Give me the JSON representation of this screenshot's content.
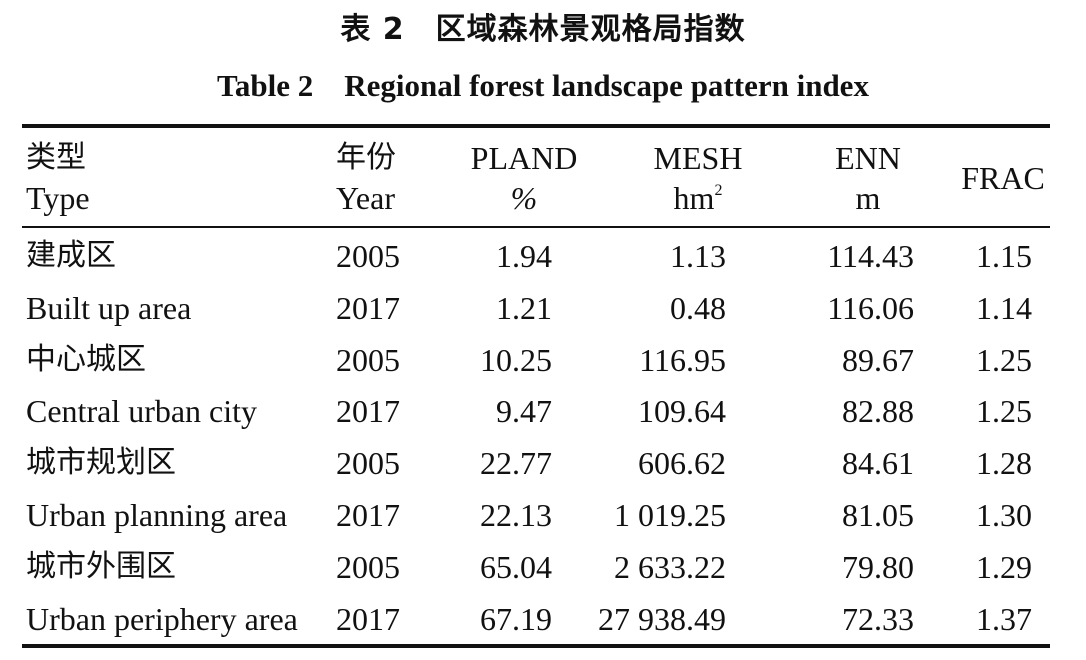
{
  "title_cn": "表 2　区域森林景观格局指数",
  "title_en": "Table 2　Regional forest landscape pattern index",
  "headers": {
    "type_cn": "类型",
    "type_en": "Type",
    "year_cn": "年份",
    "year_en": "Year",
    "pland": "PLAND",
    "pland_unit": "%",
    "mesh": "MESH",
    "mesh_unit": "hm",
    "mesh_unit_sup": "2",
    "enn": "ENN",
    "enn_unit": "m",
    "frac": "FRAC"
  },
  "rows": [
    {
      "type": "建成区",
      "year": "2005",
      "pland": "1.94",
      "mesh": "1.13",
      "enn": "114.43",
      "frac": "1.15"
    },
    {
      "type": "Built up area",
      "year": "2017",
      "pland": "1.21",
      "mesh": "0.48",
      "enn": "116.06",
      "frac": "1.14"
    },
    {
      "type": "中心城区",
      "year": "2005",
      "pland": "10.25",
      "mesh": "116.95",
      "enn": "89.67",
      "frac": "1.25"
    },
    {
      "type": "Central urban city",
      "year": "2017",
      "pland": "9.47",
      "mesh": "109.64",
      "enn": "82.88",
      "frac": "1.25"
    },
    {
      "type": "城市规划区",
      "year": "2005",
      "pland": "22.77",
      "mesh": "606.62",
      "enn": "84.61",
      "frac": "1.28"
    },
    {
      "type": "Urban planning area",
      "year": "2017",
      "pland": "22.13",
      "mesh": "1 019.25",
      "enn": "81.05",
      "frac": "1.30"
    },
    {
      "type": "城市外围区",
      "year": "2005",
      "pland": "65.04",
      "mesh": "2 633.22",
      "enn": "79.80",
      "frac": "1.29"
    },
    {
      "type": "Urban periphery area",
      "year": "2017",
      "pland": "67.19",
      "mesh": "27 938.49",
      "enn": "72.33",
      "frac": "1.37"
    }
  ]
}
